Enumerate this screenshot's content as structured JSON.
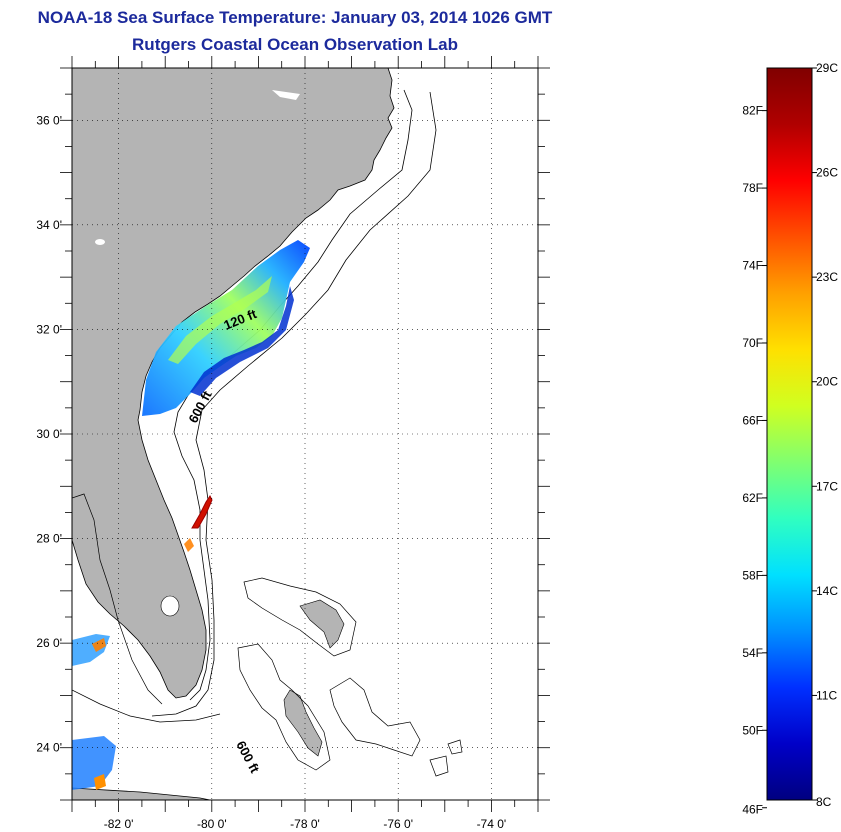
{
  "header": {
    "title": "NOAA-18 Sea Surface Temperature:  January 03, 2014 1026 GMT",
    "subtitle": "Rutgers Coastal Ocean Observation Lab"
  },
  "map": {
    "lon_range": [
      -83.0,
      -73.0
    ],
    "lat_range": [
      23.0,
      37.0
    ],
    "lon_ticks": [
      {
        "value": -82,
        "label": "-82 0'"
      },
      {
        "value": -80,
        "label": "-80 0'"
      },
      {
        "value": -78,
        "label": "-78 0'"
      },
      {
        "value": -76,
        "label": "-76 0'"
      },
      {
        "value": -74,
        "label": "-74 0'"
      }
    ],
    "lat_ticks": [
      {
        "value": 24,
        "label": "24 0'"
      },
      {
        "value": 26,
        "label": "26 0'"
      },
      {
        "value": 28,
        "label": "28 0'"
      },
      {
        "value": 30,
        "label": "30 0'"
      },
      {
        "value": 32,
        "label": "32 0'"
      },
      {
        "value": 34,
        "label": "34 0'"
      },
      {
        "value": 36,
        "label": "36 0'"
      }
    ],
    "contour_labels": [
      "120 ft",
      "600 ft",
      "600 ft"
    ],
    "colors": {
      "land": "#b4b4b4",
      "ocean": "#ffffff",
      "grid": "#000000"
    }
  },
  "colorbar": {
    "fahrenheit_labels": [
      "82F",
      "78F",
      "74F",
      "70F",
      "66F",
      "62F",
      "58F",
      "54F",
      "50F",
      "46F"
    ],
    "celsius_labels": [
      "29C",
      "26C",
      "23C",
      "20C",
      "17C",
      "14C",
      "11C",
      "8C"
    ],
    "range_c": [
      8,
      29
    ],
    "gradient": [
      "#000080",
      "#0000c8",
      "#0030ff",
      "#0090ff",
      "#00e0ff",
      "#30ffc0",
      "#80ff70",
      "#d0ff20",
      "#ffe000",
      "#ffa000",
      "#ff5000",
      "#ff0000",
      "#b00000",
      "#800000"
    ]
  }
}
